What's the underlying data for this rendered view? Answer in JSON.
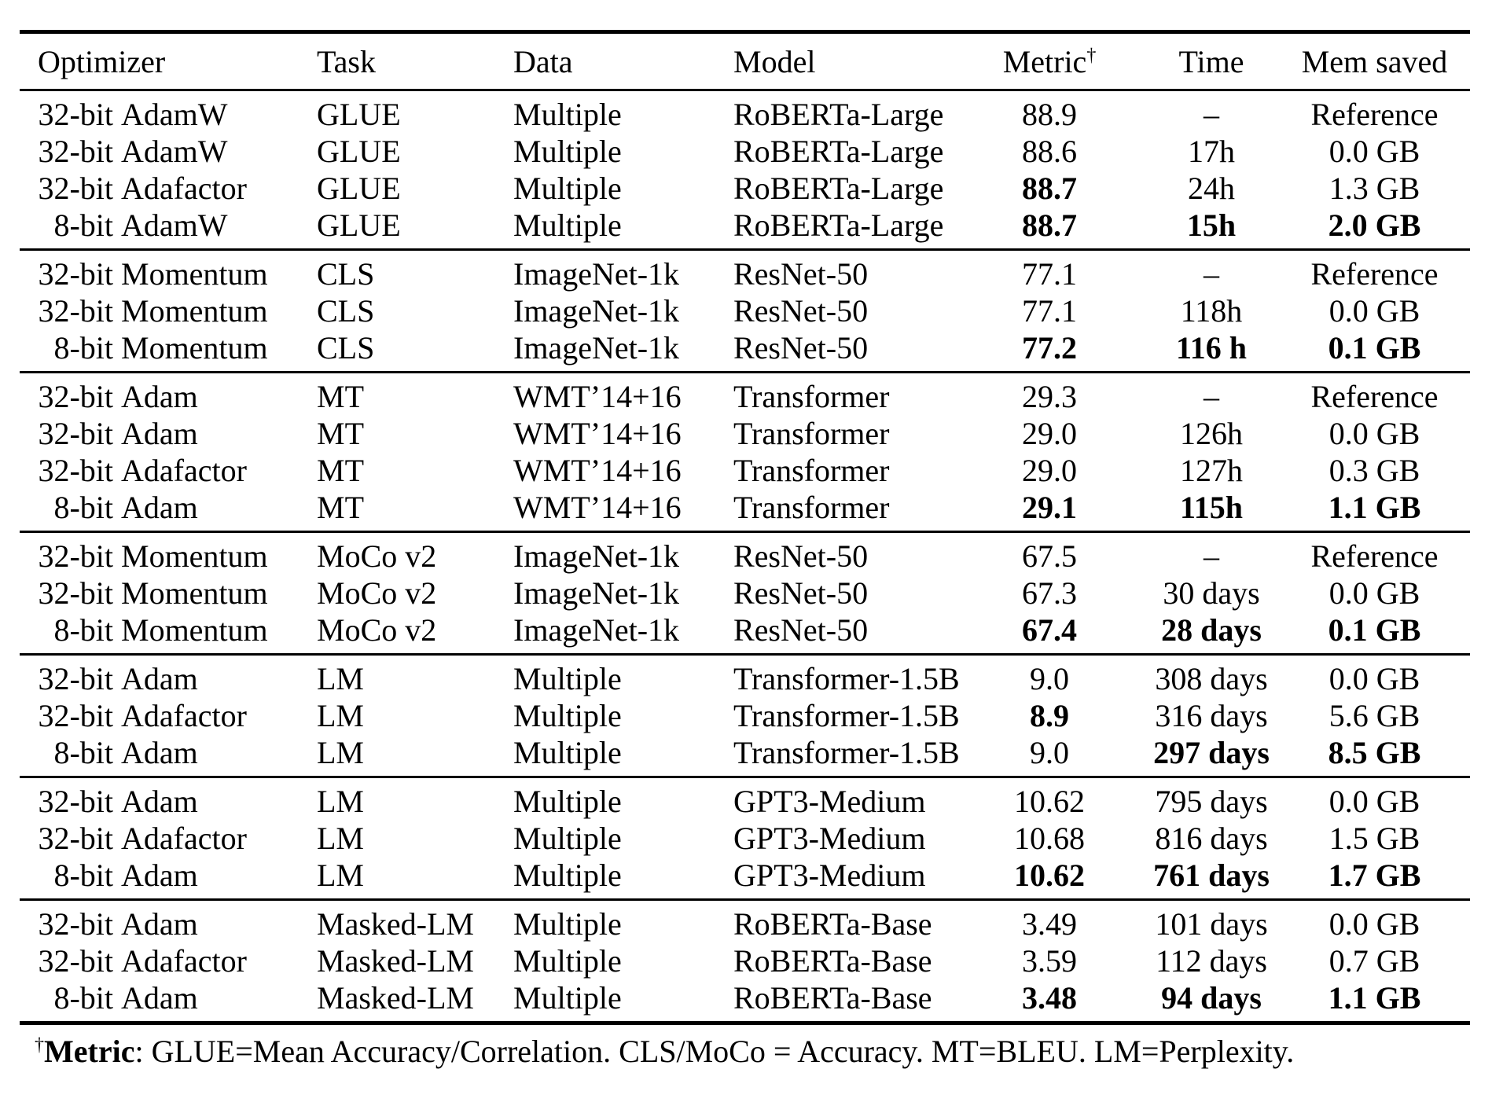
{
  "table": {
    "columns": [
      {
        "label": "Optimizer"
      },
      {
        "label": "Task"
      },
      {
        "label": "Data"
      },
      {
        "label": "Model"
      },
      {
        "label": "Metric",
        "sup": "†"
      },
      {
        "label": "Time"
      },
      {
        "label": "Mem saved"
      }
    ],
    "groups": [
      {
        "rows": [
          {
            "opt_prefix": "32-bit",
            "opt_name": "AdamW",
            "task": "GLUE",
            "data": "Multiple",
            "model": "RoBERTa-Large",
            "metric": "88.9",
            "time": "–",
            "mem": "Reference",
            "bold": []
          },
          {
            "opt_prefix": "32-bit",
            "opt_name": "AdamW",
            "task": "GLUE",
            "data": "Multiple",
            "model": "RoBERTa-Large",
            "metric": "88.6",
            "time": "17h",
            "mem": "0.0 GB",
            "bold": []
          },
          {
            "opt_prefix": "32-bit",
            "opt_name": "Adafactor",
            "task": "GLUE",
            "data": "Multiple",
            "model": "RoBERTa-Large",
            "metric": "88.7",
            "time": "24h",
            "mem": "1.3 GB",
            "bold": [
              "metric"
            ]
          },
          {
            "opt_prefix": "8-bit",
            "opt_name": "AdamW",
            "task": "GLUE",
            "data": "Multiple",
            "model": "RoBERTa-Large",
            "metric": "88.7",
            "time": "15h",
            "mem": "2.0 GB",
            "bold": [
              "metric",
              "time",
              "mem"
            ]
          }
        ]
      },
      {
        "rows": [
          {
            "opt_prefix": "32-bit",
            "opt_name": "Momentum",
            "task": "CLS",
            "data": "ImageNet-1k",
            "model": "ResNet-50",
            "metric": "77.1",
            "time": "–",
            "mem": "Reference",
            "bold": []
          },
          {
            "opt_prefix": "32-bit",
            "opt_name": "Momentum",
            "task": "CLS",
            "data": "ImageNet-1k",
            "model": "ResNet-50",
            "metric": "77.1",
            "time": "118h",
            "mem": "0.0 GB",
            "bold": []
          },
          {
            "opt_prefix": "8-bit",
            "opt_name": "Momentum",
            "task": "CLS",
            "data": "ImageNet-1k",
            "model": "ResNet-50",
            "metric": "77.2",
            "time": "116 h",
            "mem": "0.1 GB",
            "bold": [
              "metric",
              "time",
              "mem"
            ]
          }
        ]
      },
      {
        "rows": [
          {
            "opt_prefix": "32-bit",
            "opt_name": "Adam",
            "task": "MT",
            "data": "WMT’14+16",
            "model": "Transformer",
            "metric": "29.3",
            "time": "–",
            "mem": "Reference",
            "bold": []
          },
          {
            "opt_prefix": "32-bit",
            "opt_name": "Adam",
            "task": "MT",
            "data": "WMT’14+16",
            "model": "Transformer",
            "metric": "29.0",
            "time": "126h",
            "mem": "0.0 GB",
            "bold": []
          },
          {
            "opt_prefix": "32-bit",
            "opt_name": "Adafactor",
            "task": "MT",
            "data": "WMT’14+16",
            "model": "Transformer",
            "metric": "29.0",
            "time": "127h",
            "mem": "0.3 GB",
            "bold": []
          },
          {
            "opt_prefix": "8-bit",
            "opt_name": "Adam",
            "task": "MT",
            "data": "WMT’14+16",
            "model": "Transformer",
            "metric": "29.1",
            "time": "115h",
            "mem": "1.1 GB",
            "bold": [
              "metric",
              "time",
              "mem"
            ]
          }
        ]
      },
      {
        "rows": [
          {
            "opt_prefix": "32-bit",
            "opt_name": "Momentum",
            "task": "MoCo v2",
            "data": "ImageNet-1k",
            "model": "ResNet-50",
            "metric": "67.5",
            "time": "–",
            "mem": "Reference",
            "bold": []
          },
          {
            "opt_prefix": "32-bit",
            "opt_name": "Momentum",
            "task": "MoCo v2",
            "data": "ImageNet-1k",
            "model": "ResNet-50",
            "metric": "67.3",
            "time": "30 days",
            "mem": "0.0 GB",
            "bold": []
          },
          {
            "opt_prefix": "8-bit",
            "opt_name": "Momentum",
            "task": "MoCo v2",
            "data": "ImageNet-1k",
            "model": "ResNet-50",
            "metric": "67.4",
            "time": "28 days",
            "mem": "0.1 GB",
            "bold": [
              "metric",
              "time",
              "mem"
            ]
          }
        ]
      },
      {
        "rows": [
          {
            "opt_prefix": "32-bit",
            "opt_name": "Adam",
            "task": "LM",
            "data": "Multiple",
            "model": "Transformer-1.5B",
            "metric": "9.0",
            "time": "308 days",
            "mem": "0.0 GB",
            "bold": []
          },
          {
            "opt_prefix": "32-bit",
            "opt_name": "Adafactor",
            "task": "LM",
            "data": "Multiple",
            "model": "Transformer-1.5B",
            "metric": "8.9",
            "time": "316 days",
            "mem": "5.6 GB",
            "bold": [
              "metric"
            ]
          },
          {
            "opt_prefix": "8-bit",
            "opt_name": "Adam",
            "task": "LM",
            "data": "Multiple",
            "model": "Transformer-1.5B",
            "metric": "9.0",
            "time": "297 days",
            "mem": "8.5 GB",
            "bold": [
              "time",
              "mem"
            ]
          }
        ]
      },
      {
        "rows": [
          {
            "opt_prefix": "32-bit",
            "opt_name": "Adam",
            "task": "LM",
            "data": "Multiple",
            "model": "GPT3-Medium",
            "metric": "10.62",
            "time": "795 days",
            "mem": "0.0 GB",
            "bold": []
          },
          {
            "opt_prefix": "32-bit",
            "opt_name": "Adafactor",
            "task": "LM",
            "data": "Multiple",
            "model": "GPT3-Medium",
            "metric": "10.68",
            "time": "816 days",
            "mem": "1.5 GB",
            "bold": []
          },
          {
            "opt_prefix": "8-bit",
            "opt_name": "Adam",
            "task": "LM",
            "data": "Multiple",
            "model": "GPT3-Medium",
            "metric": "10.62",
            "time": "761 days",
            "mem": "1.7 GB",
            "bold": [
              "metric",
              "time",
              "mem"
            ]
          }
        ]
      },
      {
        "rows": [
          {
            "opt_prefix": "32-bit",
            "opt_name": "Adam",
            "task": "Masked-LM",
            "data": "Multiple",
            "model": "RoBERTa-Base",
            "metric": "3.49",
            "time": "101 days",
            "mem": "0.0 GB",
            "bold": []
          },
          {
            "opt_prefix": "32-bit",
            "opt_name": "Adafactor",
            "task": "Masked-LM",
            "data": "Multiple",
            "model": "RoBERTa-Base",
            "metric": "3.59",
            "time": "112 days",
            "mem": "0.7 GB",
            "bold": []
          },
          {
            "opt_prefix": "8-bit",
            "opt_name": "Adam",
            "task": "Masked-LM",
            "data": "Multiple",
            "model": "RoBERTa-Base",
            "metric": "3.48",
            "time": "94 days",
            "mem": "1.1 GB",
            "bold": [
              "metric",
              "time",
              "mem"
            ]
          }
        ]
      }
    ]
  },
  "footnote": {
    "sup": "†",
    "bold": "Metric",
    "text": ": GLUE=Mean Accuracy/Correlation. CLS/MoCo = Accuracy. MT=BLEU. LM=Perplexity."
  }
}
